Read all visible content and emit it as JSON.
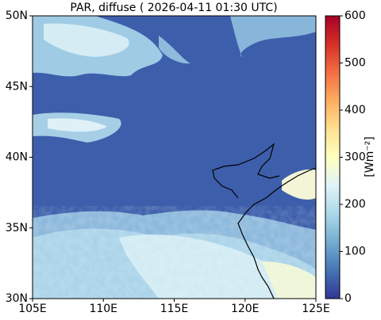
{
  "chart_data": {
    "type": "map",
    "title": "PAR, diffuse ( 2026-04-11 01:30 UTC)",
    "xlim": [
      105,
      125
    ],
    "ylim": [
      30,
      50
    ],
    "xticks": [
      {
        "value": 105,
        "label": "105E"
      },
      {
        "value": 110,
        "label": "110E"
      },
      {
        "value": 115,
        "label": "115E"
      },
      {
        "value": 120,
        "label": "120E"
      },
      {
        "value": 125,
        "label": "125E"
      }
    ],
    "yticks": [
      {
        "value": 30,
        "label": "30N"
      },
      {
        "value": 35,
        "label": "35N"
      },
      {
        "value": 40,
        "label": "40N"
      },
      {
        "value": 45,
        "label": "45N"
      },
      {
        "value": 50,
        "label": "50N"
      }
    ],
    "clim": [
      0,
      600
    ],
    "cticks": [
      0,
      100,
      200,
      300,
      400,
      500,
      600
    ],
    "colorbar_label": "[Wm⁻²]",
    "colorscale": [
      "#313695",
      "#4575b4",
      "#74add1",
      "#abd9e9",
      "#e0f3f8",
      "#ffffbf",
      "#fee090",
      "#fdae61",
      "#f46d43",
      "#d73027",
      "#a50026"
    ]
  }
}
